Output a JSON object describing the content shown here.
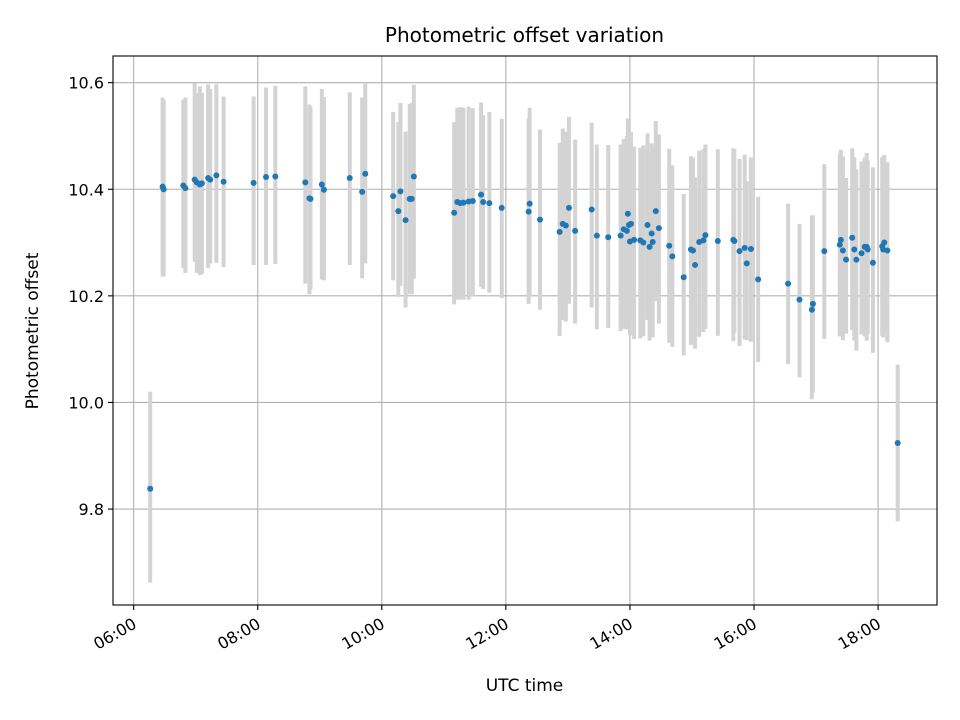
{
  "chart_data": {
    "type": "scatter",
    "title": "Photometric offset variation",
    "xlabel": "UTC time",
    "ylabel": "Photometric offset",
    "x_ticks": [
      "06:00",
      "08:00",
      "10:00",
      "12:00",
      "14:00",
      "16:00",
      "18:00"
    ],
    "y_ticks": [
      "9.8",
      "10.0",
      "10.2",
      "10.4",
      "10.6"
    ],
    "x_tick_values": [
      6,
      8,
      10,
      12,
      14,
      16,
      18
    ],
    "y_tick_values": [
      9.8,
      10.0,
      10.2,
      10.4,
      10.6
    ],
    "xlim": [
      "05:40",
      "18:57"
    ],
    "ylim": [
      9.62,
      10.65
    ],
    "grid": true,
    "colors": {
      "point": "#1f77b4",
      "errorbar": "#d3d3d3",
      "grid": "#b0b0b0"
    },
    "series": [
      {
        "x": [
          "06:16",
          "06:28",
          "06:29",
          "06:48",
          "06:50",
          "06:59",
          "07:01",
          "07:04",
          "07:06",
          "07:12",
          "07:14",
          "07:20",
          "07:27",
          "07:56",
          "08:08",
          "08:17",
          "08:46",
          "08:50",
          "08:51",
          "09:02",
          "09:04",
          "09:29",
          "09:41",
          "09:44",
          "10:11",
          "10:16",
          "10:18",
          "10:23",
          "10:27",
          "10:29",
          "10:31",
          "11:10",
          "11:13",
          "11:16",
          "11:19",
          "11:24",
          "11:28",
          "11:36",
          "11:38",
          "11:44",
          "11:56",
          "12:22",
          "12:23",
          "12:33",
          "12:52",
          "12:55",
          "12:58",
          "13:01",
          "13:07",
          "13:23",
          "13:28",
          "13:39",
          "13:51",
          "13:54",
          "13:57",
          "13:58",
          "13:59",
          "14:00",
          "14:01",
          "14:04",
          "14:10",
          "14:13",
          "14:17",
          "14:19",
          "14:21",
          "14:22",
          "14:25",
          "14:28",
          "14:38",
          "14:41",
          "14:52",
          "14:59",
          "15:01",
          "15:03",
          "15:07",
          "15:11",
          "15:13",
          "15:25",
          "15:40",
          "15:41",
          "15:46",
          "15:51",
          "15:53",
          "15:57",
          "16:04",
          "16:33",
          "16:44",
          "16:56",
          "16:57",
          "17:08",
          "17:23",
          "17:24",
          "17:26",
          "17:29",
          "17:35",
          "17:37",
          "17:39",
          "17:44",
          "17:47",
          "17:49",
          "17:50",
          "17:55",
          "18:04",
          "18:05",
          "18:06",
          "18:09",
          "18:19"
        ],
        "y": [
          9.838,
          10.405,
          10.4,
          10.407,
          10.402,
          10.418,
          10.413,
          10.409,
          10.411,
          10.421,
          10.418,
          10.426,
          10.414,
          10.412,
          10.423,
          10.424,
          10.413,
          10.383,
          10.382,
          10.409,
          10.399,
          10.421,
          10.395,
          10.429,
          10.387,
          10.359,
          10.396,
          10.342,
          10.382,
          10.382,
          10.424,
          10.356,
          10.376,
          10.374,
          10.375,
          10.377,
          10.378,
          10.39,
          10.376,
          10.374,
          10.365,
          10.358,
          10.373,
          10.343,
          10.32,
          10.335,
          10.332,
          10.365,
          10.322,
          10.362,
          10.313,
          10.31,
          10.313,
          10.325,
          10.322,
          10.354,
          10.333,
          10.302,
          10.335,
          10.305,
          10.304,
          10.3,
          10.333,
          10.292,
          10.317,
          10.301,
          10.359,
          10.327,
          10.294,
          10.274,
          10.235,
          10.287,
          10.285,
          10.258,
          10.301,
          10.304,
          10.314,
          10.303,
          10.305,
          10.303,
          10.284,
          10.29,
          10.261,
          10.288,
          10.231,
          10.223,
          10.193,
          10.174,
          10.185,
          10.284,
          10.296,
          10.305,
          10.285,
          10.268,
          10.309,
          10.287,
          10.268,
          10.28,
          10.292,
          10.292,
          10.287,
          10.262,
          10.293,
          10.287,
          10.3,
          10.285,
          9.924
        ],
        "err_low": [
          9.662,
          10.236,
          10.236,
          10.252,
          10.243,
          10.264,
          10.243,
          10.239,
          10.241,
          10.252,
          10.261,
          10.262,
          10.254,
          10.258,
          10.258,
          10.26,
          10.223,
          10.203,
          10.212,
          10.231,
          10.229,
          10.258,
          10.233,
          10.261,
          10.229,
          10.198,
          10.219,
          10.178,
          10.203,
          10.203,
          10.232,
          10.184,
          10.193,
          10.193,
          10.193,
          10.193,
          10.199,
          10.217,
          10.213,
          10.206,
          10.196,
          10.185,
          10.198,
          10.174,
          10.125,
          10.155,
          10.152,
          10.185,
          10.148,
          10.178,
          10.137,
          10.14,
          10.134,
          10.138,
          10.137,
          10.165,
          10.152,
          10.126,
          10.157,
          10.119,
          10.12,
          10.124,
          10.155,
          10.116,
          10.143,
          10.122,
          10.19,
          10.148,
          10.112,
          10.104,
          10.088,
          10.108,
          10.108,
          10.101,
          10.123,
          10.132,
          10.138,
          10.125,
          10.115,
          10.131,
          10.106,
          10.118,
          10.117,
          10.114,
          10.076,
          10.072,
          10.047,
          10.006,
          10.018,
          10.119,
          10.124,
          10.13,
          10.117,
          10.129,
          10.136,
          10.116,
          10.097,
          10.128,
          10.124,
          10.116,
          10.129,
          10.093,
          10.125,
          10.122,
          10.132,
          10.113,
          9.777
        ],
        "err_high": [
          10.02,
          10.572,
          10.567,
          10.568,
          10.572,
          10.599,
          10.58,
          10.593,
          10.581,
          10.597,
          10.588,
          10.597,
          10.574,
          10.574,
          10.591,
          10.594,
          10.593,
          10.559,
          10.555,
          10.588,
          10.573,
          10.582,
          10.572,
          10.598,
          10.545,
          10.526,
          10.562,
          10.508,
          10.56,
          10.562,
          10.596,
          10.526,
          10.553,
          10.554,
          10.553,
          10.555,
          10.552,
          10.563,
          10.539,
          10.545,
          10.532,
          10.533,
          10.553,
          10.512,
          10.487,
          10.514,
          10.508,
          10.536,
          10.493,
          10.525,
          10.484,
          10.483,
          10.484,
          10.494,
          10.5,
          10.533,
          10.507,
          10.475,
          10.507,
          10.48,
          10.478,
          10.482,
          10.505,
          10.468,
          10.486,
          10.479,
          10.528,
          10.503,
          10.476,
          10.445,
          10.391,
          10.462,
          10.459,
          10.422,
          10.472,
          10.475,
          10.484,
          10.475,
          10.477,
          10.475,
          10.457,
          10.465,
          10.415,
          10.46,
          10.386,
          10.373,
          10.335,
          10.351,
          10.351,
          10.447,
          10.467,
          10.474,
          10.462,
          10.421,
          10.477,
          10.46,
          10.437,
          10.452,
          10.459,
          10.468,
          10.454,
          10.441,
          10.46,
          10.459,
          10.464,
          10.451,
          10.071
        ]
      }
    ]
  }
}
